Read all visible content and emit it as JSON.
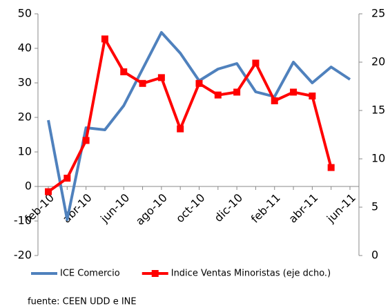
{
  "chart_data": {
    "type": "line",
    "categories": [
      "feb-10",
      null,
      "abr-10",
      null,
      "jun-10",
      null,
      "ago-10",
      null,
      "oct-10",
      null,
      "dic-10",
      null,
      "feb-11",
      null,
      "abr-11",
      null,
      "jun-11"
    ],
    "series": [
      {
        "name": "ICE Comercio",
        "color": "#4f81bd",
        "values": [
          19.2,
          -9.6,
          17,
          16.4,
          23.4,
          34,
          44.6,
          38.6,
          30.6,
          34,
          35.6,
          27.4,
          26,
          36,
          30,
          34.6,
          31
        ]
      },
      {
        "name": "Indice Ventas Minoristas (eje dcho.)",
        "color": "#ff0000",
        "axis": "y2",
        "values": [
          6.6,
          8.0,
          11.9,
          22.4,
          19.0,
          17.8,
          18.4,
          13.1,
          17.8,
          16.6,
          16.9,
          19.9,
          16.0,
          16.9,
          16.5,
          9.1,
          null
        ]
      }
    ],
    "ylim": [
      -20,
      50
    ],
    "yticks": [
      -20,
      -10,
      0,
      10,
      20,
      30,
      40,
      50
    ],
    "y2lim": [
      0,
      25
    ],
    "y2ticks": [
      0,
      5,
      10,
      15,
      20,
      25
    ],
    "grid": false,
    "legend": "bottom",
    "source": "fuente: CEEN UDD e INE"
  }
}
